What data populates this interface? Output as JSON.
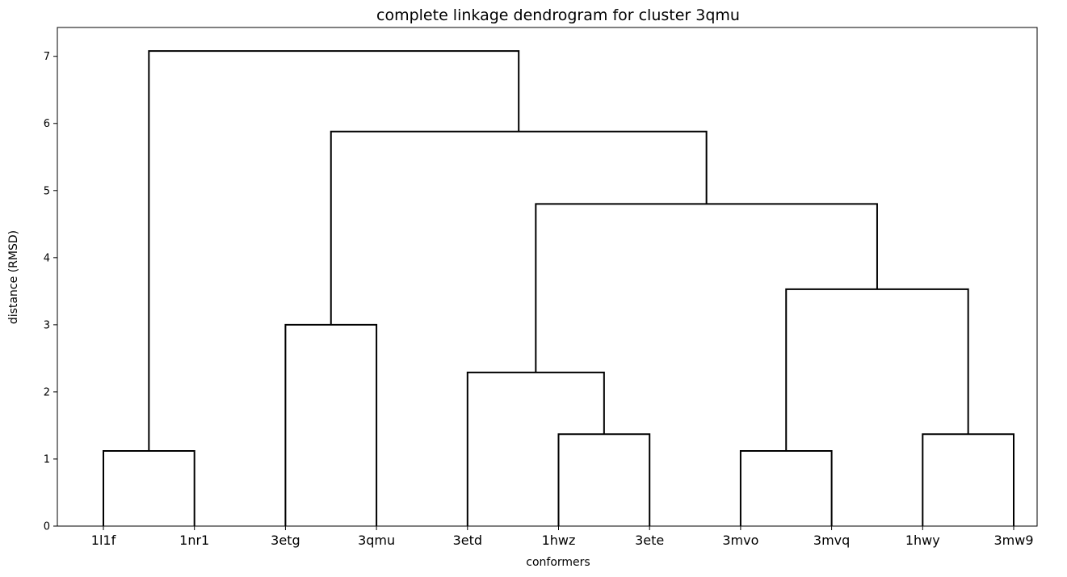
{
  "chart_data": {
    "type": "dendrogram",
    "title": "complete linkage dendrogram for cluster 3qmu",
    "xlabel": "conformers",
    "ylabel": "distance (RMSD)",
    "leaves": [
      "1l1f",
      "1nr1",
      "3etg",
      "3qmu",
      "3etd",
      "1hwz",
      "3ete",
      "3mvo",
      "3mvq",
      "1hwy",
      "3mw9"
    ],
    "merges": [
      {
        "left": "1l1f",
        "right": "1nr1",
        "height": 1.12
      },
      {
        "left": "3etg",
        "right": "3qmu",
        "height": 3.0
      },
      {
        "left": "1hwz",
        "right": "3ete",
        "height": 1.37
      },
      {
        "left": "3etd",
        "right": "{1hwz,3ete}",
        "height": 2.29
      },
      {
        "left": "3mvo",
        "right": "3mvq",
        "height": 1.12
      },
      {
        "left": "1hwy",
        "right": "3mw9",
        "height": 1.37
      },
      {
        "left": "{3mvo,3mvq}",
        "right": "{1hwy,3mw9}",
        "height": 3.53
      },
      {
        "left": "{3etd,1hwz,3ete}",
        "right": "{3mvo,3mvq,1hwy,3mw9}",
        "height": 4.8
      },
      {
        "left": "{3etg,3qmu}",
        "right": "{3etd,1hwz,3ete,3mvo,3mvq,1hwy,3mw9}",
        "height": 5.88
      },
      {
        "left": "{1l1f,1nr1}",
        "right": "{3etg,3qmu,3etd,1hwz,3ete,3mvo,3mvq,1hwy,3mw9}",
        "height": 7.08
      }
    ],
    "yticks": [
      0,
      1,
      2,
      3,
      4,
      5,
      6,
      7
    ],
    "ylim": [
      0,
      7.43
    ],
    "grid": false,
    "line_color": "#000000"
  }
}
